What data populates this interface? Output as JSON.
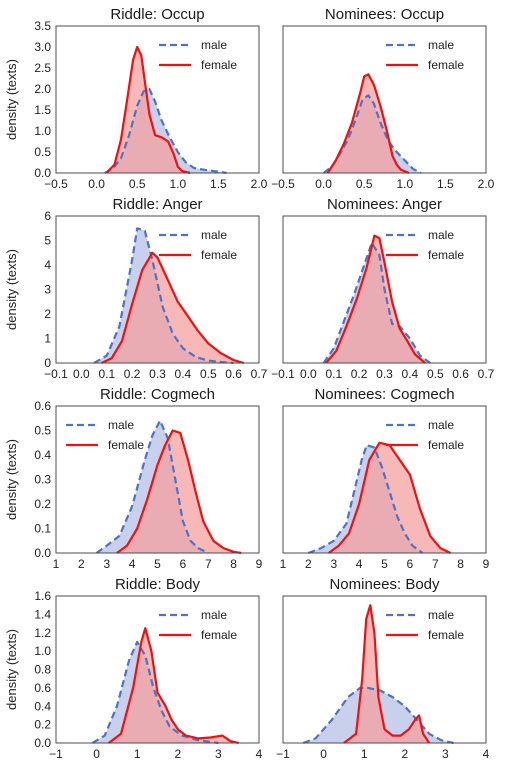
{
  "figure": {
    "ylabel": "density (texts)"
  },
  "colors": {
    "male": "#4c72c9",
    "male_fill": "#c8d0ec",
    "female": "#ee1111",
    "female_fill": "#f4a0a0"
  },
  "chart_data": [
    {
      "type": "area",
      "title": "Riddle: Occup",
      "xlim": [
        -0.5,
        2.0
      ],
      "ylim": [
        0,
        3.5
      ],
      "xticks": [
        "−0.5",
        "0.0",
        "0.5",
        "1.0",
        "1.5",
        "2.0"
      ],
      "xtick_values": [
        -0.5,
        0,
        0.5,
        1.0,
        1.5,
        2.0
      ],
      "yticks": [
        "0.0",
        "0.5",
        "1.0",
        "1.5",
        "2.0",
        "2.5",
        "3.0",
        "3.5"
      ],
      "ytick_values": [
        0,
        0.5,
        1.0,
        1.5,
        2.0,
        2.5,
        3.0,
        3.5
      ],
      "legend": [
        "male",
        "female"
      ],
      "legend_position": "top-right",
      "series": [
        {
          "name": "male",
          "x": [
            0.1,
            0.2,
            0.3,
            0.4,
            0.5,
            0.58,
            0.65,
            0.72,
            0.8,
            0.9,
            1.0,
            1.1,
            1.2,
            1.35,
            1.5,
            1.6
          ],
          "y": [
            0.0,
            0.1,
            0.35,
            0.9,
            1.6,
            1.95,
            2.0,
            1.7,
            1.25,
            0.85,
            0.5,
            0.25,
            0.12,
            0.07,
            0.03,
            0.0
          ]
        },
        {
          "name": "female",
          "x": [
            0.12,
            0.22,
            0.3,
            0.38,
            0.45,
            0.5,
            0.55,
            0.6,
            0.65,
            0.72,
            0.8,
            0.88,
            0.95,
            1.0,
            1.05,
            1.15
          ],
          "y": [
            0.0,
            0.2,
            0.8,
            1.8,
            2.7,
            3.0,
            2.8,
            2.1,
            1.4,
            0.9,
            0.85,
            0.75,
            0.45,
            0.15,
            0.05,
            0.0
          ]
        }
      ]
    },
    {
      "type": "area",
      "title": "Nominees: Occup",
      "xlim": [
        -0.5,
        2.0
      ],
      "ylim": [
        0,
        3.5
      ],
      "xticks": [
        "−0.5",
        "0.0",
        "0.5",
        "1.0",
        "1.5",
        "2.0"
      ],
      "xtick_values": [
        -0.5,
        0,
        0.5,
        1.0,
        1.5,
        2.0
      ],
      "yticks": [],
      "ytick_values": [
        0,
        0.5,
        1.0,
        1.5,
        2.0,
        2.5,
        3.0,
        3.5
      ],
      "legend": [
        "male",
        "female"
      ],
      "legend_position": "top-right",
      "series": [
        {
          "name": "male",
          "x": [
            0.0,
            0.1,
            0.2,
            0.3,
            0.4,
            0.48,
            0.55,
            0.62,
            0.7,
            0.8,
            0.9,
            1.0,
            1.1,
            1.2
          ],
          "y": [
            0.0,
            0.15,
            0.45,
            0.8,
            1.3,
            1.75,
            1.85,
            1.65,
            1.2,
            0.75,
            0.5,
            0.3,
            0.1,
            0.0
          ]
        },
        {
          "name": "female",
          "x": [
            0.05,
            0.15,
            0.25,
            0.35,
            0.45,
            0.5,
            0.55,
            0.62,
            0.7,
            0.78,
            0.85,
            0.9,
            0.95,
            1.05
          ],
          "y": [
            0.0,
            0.3,
            0.7,
            1.2,
            1.9,
            2.3,
            2.35,
            2.1,
            1.6,
            1.0,
            0.4,
            0.2,
            0.08,
            0.0
          ]
        }
      ]
    },
    {
      "type": "area",
      "title": "Riddle: Anger",
      "xlim": [
        -0.1,
        0.7
      ],
      "ylim": [
        0,
        6
      ],
      "xticks": [
        "−0.1",
        "0.0",
        "0.1",
        "0.2",
        "0.3",
        "0.4",
        "0.5",
        "0.6",
        "0.7"
      ],
      "xtick_values": [
        -0.1,
        0,
        0.1,
        0.2,
        0.3,
        0.4,
        0.5,
        0.6,
        0.7
      ],
      "yticks": [
        "0",
        "1",
        "2",
        "3",
        "4",
        "5",
        "6"
      ],
      "ytick_values": [
        0,
        1,
        2,
        3,
        4,
        5,
        6
      ],
      "legend": [
        "male",
        "female"
      ],
      "legend_position": "top-right",
      "series": [
        {
          "name": "male",
          "x": [
            0.05,
            0.1,
            0.15,
            0.2,
            0.22,
            0.25,
            0.28,
            0.32,
            0.36,
            0.4,
            0.45,
            0.5,
            0.55,
            0.6
          ],
          "y": [
            0.0,
            0.3,
            1.5,
            4.2,
            5.5,
            5.4,
            4.2,
            2.3,
            1.2,
            0.6,
            0.25,
            0.1,
            0.04,
            0.0
          ]
        },
        {
          "name": "female",
          "x": [
            0.08,
            0.12,
            0.16,
            0.2,
            0.24,
            0.28,
            0.3,
            0.34,
            0.38,
            0.42,
            0.46,
            0.5,
            0.55,
            0.6,
            0.64
          ],
          "y": [
            0.0,
            0.2,
            0.9,
            2.4,
            3.8,
            4.5,
            4.3,
            3.4,
            2.5,
            1.9,
            1.3,
            0.8,
            0.4,
            0.12,
            0.0
          ]
        }
      ]
    },
    {
      "type": "area",
      "title": "Nominees: Anger",
      "xlim": [
        -0.1,
        0.7
      ],
      "ylim": [
        0,
        6
      ],
      "xticks": [
        "−0.1",
        "0.0",
        "0.1",
        "0.2",
        "0.3",
        "0.4",
        "0.5",
        "0.6",
        "0.7"
      ],
      "xtick_values": [
        -0.1,
        0,
        0.1,
        0.2,
        0.3,
        0.4,
        0.5,
        0.6,
        0.7
      ],
      "yticks": [],
      "ytick_values": [
        0,
        1,
        2,
        3,
        4,
        5,
        6
      ],
      "legend": [
        "male",
        "female"
      ],
      "legend_position": "top-right",
      "series": [
        {
          "name": "male",
          "x": [
            0.06,
            0.1,
            0.14,
            0.18,
            0.22,
            0.25,
            0.28,
            0.3,
            0.33,
            0.36,
            0.4,
            0.44,
            0.48
          ],
          "y": [
            0.0,
            0.6,
            1.7,
            2.8,
            4.0,
            4.9,
            4.4,
            3.0,
            1.6,
            1.5,
            1.0,
            0.3,
            0.0
          ]
        },
        {
          "name": "female",
          "x": [
            0.07,
            0.11,
            0.15,
            0.19,
            0.23,
            0.26,
            0.28,
            0.3,
            0.33,
            0.36,
            0.39,
            0.42,
            0.46
          ],
          "y": [
            0.0,
            0.5,
            1.5,
            2.6,
            3.9,
            5.2,
            5.1,
            4.1,
            2.5,
            1.4,
            0.9,
            0.35,
            0.0
          ]
        }
      ]
    },
    {
      "type": "area",
      "title": "Riddle: Cogmech",
      "xlim": [
        1,
        9
      ],
      "ylim": [
        0,
        0.6
      ],
      "xticks": [
        "1",
        "2",
        "3",
        "4",
        "5",
        "6",
        "7",
        "8",
        "9"
      ],
      "xtick_values": [
        1,
        2,
        3,
        4,
        5,
        6,
        7,
        8,
        9
      ],
      "yticks": [
        "0.0",
        "0.1",
        "0.2",
        "0.3",
        "0.4",
        "0.5",
        "0.6"
      ],
      "ytick_values": [
        0,
        0.1,
        0.2,
        0.3,
        0.4,
        0.5,
        0.6
      ],
      "legend": [
        "male",
        "female"
      ],
      "legend_position": "top-left",
      "series": [
        {
          "name": "male",
          "x": [
            2.6,
            3.0,
            3.5,
            4.0,
            4.5,
            4.8,
            5.1,
            5.4,
            5.7,
            6.0,
            6.3,
            6.6,
            7.0
          ],
          "y": [
            0.0,
            0.03,
            0.07,
            0.19,
            0.38,
            0.48,
            0.54,
            0.47,
            0.3,
            0.13,
            0.05,
            0.02,
            0.0
          ]
        },
        {
          "name": "female",
          "x": [
            3.4,
            3.8,
            4.2,
            4.6,
            5.0,
            5.3,
            5.6,
            5.9,
            6.2,
            6.5,
            6.8,
            7.2,
            7.6,
            8.0,
            8.3
          ],
          "y": [
            0.0,
            0.03,
            0.1,
            0.22,
            0.36,
            0.44,
            0.5,
            0.49,
            0.38,
            0.25,
            0.13,
            0.05,
            0.02,
            0.005,
            0.0
          ]
        }
      ]
    },
    {
      "type": "area",
      "title": "Nominees: Cogmech",
      "xlim": [
        1,
        9
      ],
      "ylim": [
        0,
        0.6
      ],
      "xticks": [
        "1",
        "2",
        "3",
        "4",
        "5",
        "6",
        "7",
        "8",
        "9"
      ],
      "xtick_values": [
        1,
        2,
        3,
        4,
        5,
        6,
        7,
        8,
        9
      ],
      "yticks": [],
      "ytick_values": [
        0,
        0.1,
        0.2,
        0.3,
        0.4,
        0.5,
        0.6
      ],
      "legend": [
        "male",
        "female"
      ],
      "legend_position": "top-right",
      "series": [
        {
          "name": "male",
          "x": [
            2.0,
            2.5,
            3.0,
            3.5,
            3.8,
            4.1,
            4.3,
            4.6,
            4.9,
            5.2,
            5.5,
            5.8,
            6.1,
            6.5
          ],
          "y": [
            0.0,
            0.02,
            0.05,
            0.12,
            0.25,
            0.38,
            0.44,
            0.43,
            0.35,
            0.25,
            0.15,
            0.08,
            0.03,
            0.0
          ]
        },
        {
          "name": "female",
          "x": [
            2.8,
            3.2,
            3.6,
            4.0,
            4.4,
            4.8,
            5.2,
            5.6,
            6.0,
            6.4,
            6.8,
            7.2,
            7.6
          ],
          "y": [
            0.0,
            0.03,
            0.08,
            0.2,
            0.38,
            0.45,
            0.44,
            0.38,
            0.32,
            0.18,
            0.07,
            0.02,
            0.0
          ]
        }
      ]
    },
    {
      "type": "area",
      "title": "Riddle: Body",
      "xlim": [
        -1,
        4
      ],
      "ylim": [
        0,
        1.6
      ],
      "xticks": [
        "−1",
        "0",
        "1",
        "2",
        "3",
        "4"
      ],
      "xtick_values": [
        -1,
        0,
        1,
        2,
        3,
        4
      ],
      "yticks": [
        "0.0",
        "0.2",
        "0.4",
        "0.6",
        "0.8",
        "1.0",
        "1.2",
        "1.4",
        "1.6"
      ],
      "ytick_values": [
        0,
        0.2,
        0.4,
        0.6,
        0.8,
        1.0,
        1.2,
        1.4,
        1.6
      ],
      "legend": [
        "male",
        "female"
      ],
      "legend_position": "top-right",
      "series": [
        {
          "name": "male",
          "x": [
            -0.1,
            0.2,
            0.5,
            0.8,
            1.0,
            1.2,
            1.4,
            1.6,
            1.8,
            2.1,
            2.5,
            3.0
          ],
          "y": [
            0.0,
            0.08,
            0.4,
            0.9,
            1.1,
            0.95,
            0.6,
            0.35,
            0.18,
            0.08,
            0.03,
            0.0
          ]
        },
        {
          "name": "female",
          "x": [
            0.3,
            0.6,
            0.9,
            1.1,
            1.2,
            1.35,
            1.5,
            1.7,
            1.85,
            2.0,
            2.2,
            2.5,
            2.8,
            3.1,
            3.3,
            3.5
          ],
          "y": [
            0.0,
            0.1,
            0.6,
            1.1,
            1.25,
            1.0,
            0.55,
            0.4,
            0.25,
            0.15,
            0.08,
            0.05,
            0.06,
            0.08,
            0.02,
            0.0
          ]
        }
      ]
    },
    {
      "type": "area",
      "title": "Nominees: Body",
      "xlim": [
        -1,
        4
      ],
      "ylim": [
        0,
        1.6
      ],
      "xticks": [
        "−1",
        "0",
        "1",
        "2",
        "3",
        "4"
      ],
      "xtick_values": [
        -1,
        0,
        1,
        2,
        3,
        4
      ],
      "yticks": [],
      "ytick_values": [
        0,
        0.2,
        0.4,
        0.6,
        0.8,
        1.0,
        1.2,
        1.4,
        1.6
      ],
      "legend": [
        "male",
        "female"
      ],
      "legend_position": "top-right",
      "series": [
        {
          "name": "male",
          "x": [
            -0.5,
            -0.2,
            0.2,
            0.6,
            0.9,
            1.1,
            1.4,
            1.7,
            2.0,
            2.3,
            2.6,
            2.9,
            3.2
          ],
          "y": [
            0.0,
            0.05,
            0.25,
            0.5,
            0.6,
            0.6,
            0.57,
            0.5,
            0.4,
            0.25,
            0.1,
            0.03,
            0.0
          ]
        },
        {
          "name": "female",
          "x": [
            0.5,
            0.8,
            0.95,
            1.05,
            1.15,
            1.25,
            1.35,
            1.5,
            1.7,
            1.9,
            2.1,
            2.25,
            2.35,
            2.45,
            2.6
          ],
          "y": [
            0.0,
            0.1,
            0.7,
            1.35,
            1.5,
            1.2,
            0.5,
            0.15,
            0.08,
            0.08,
            0.15,
            0.25,
            0.3,
            0.1,
            0.0
          ]
        }
      ]
    }
  ]
}
